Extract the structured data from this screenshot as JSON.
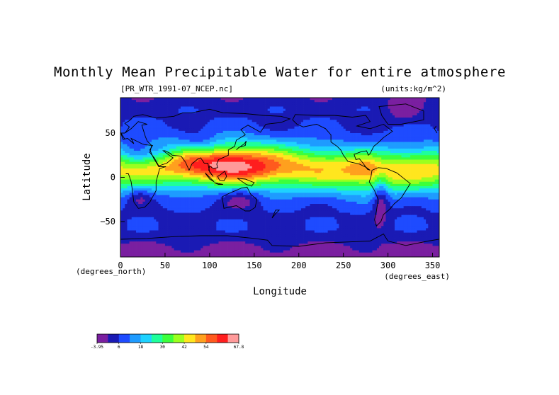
{
  "chart_data": {
    "type": "heatmap",
    "title": "Monthly Mean Precipitable Water for entire atmosphere",
    "subtitle_left": "[PR_WTR_1991-07_NCEP.nc]",
    "subtitle_right": "(units:kg/m^2)",
    "xlabel": "Longitude",
    "ylabel": "Latitude",
    "x_units_label": "(degrees_east)",
    "y_units_label": "(degrees_north)",
    "xlim": [
      0,
      357.5
    ],
    "ylim": [
      -90,
      90
    ],
    "x_ticks": [
      {
        "value": 0,
        "label": "0"
      },
      {
        "value": 50,
        "label": "50"
      },
      {
        "value": 100,
        "label": "100"
      },
      {
        "value": 150,
        "label": "150"
      },
      {
        "value": 200,
        "label": "200"
      },
      {
        "value": 250,
        "label": "250"
      },
      {
        "value": 300,
        "label": "300"
      },
      {
        "value": 350,
        "label": "350"
      }
    ],
    "y_ticks": [
      {
        "value": 50,
        "label": "50"
      },
      {
        "value": 0,
        "label": "0"
      },
      {
        "value": -50,
        "label": "−50"
      }
    ],
    "colorbar": {
      "colors": [
        "#7a1fa0",
        "#1a1ab4",
        "#1e4bff",
        "#1e9bff",
        "#1ed2ff",
        "#1eff9b",
        "#3cff3c",
        "#9bff1e",
        "#ffe61e",
        "#ffa01e",
        "#ff5a1e",
        "#ff1e1e",
        "#ff9a9a"
      ],
      "bounds": [
        -3.95,
        0,
        6,
        12,
        18,
        24,
        30,
        36,
        42,
        48,
        54,
        60,
        66,
        67.8
      ],
      "tick_labels": [
        {
          "value": -3.95,
          "label": "-3.95"
        },
        {
          "value": 6,
          "label": "6"
        },
        {
          "value": 18,
          "label": "18"
        },
        {
          "value": 30,
          "label": "30"
        },
        {
          "value": 42,
          "label": "42"
        },
        {
          "value": 54,
          "label": "54"
        },
        {
          "value": 67.8,
          "label": "67.8"
        }
      ]
    }
  }
}
